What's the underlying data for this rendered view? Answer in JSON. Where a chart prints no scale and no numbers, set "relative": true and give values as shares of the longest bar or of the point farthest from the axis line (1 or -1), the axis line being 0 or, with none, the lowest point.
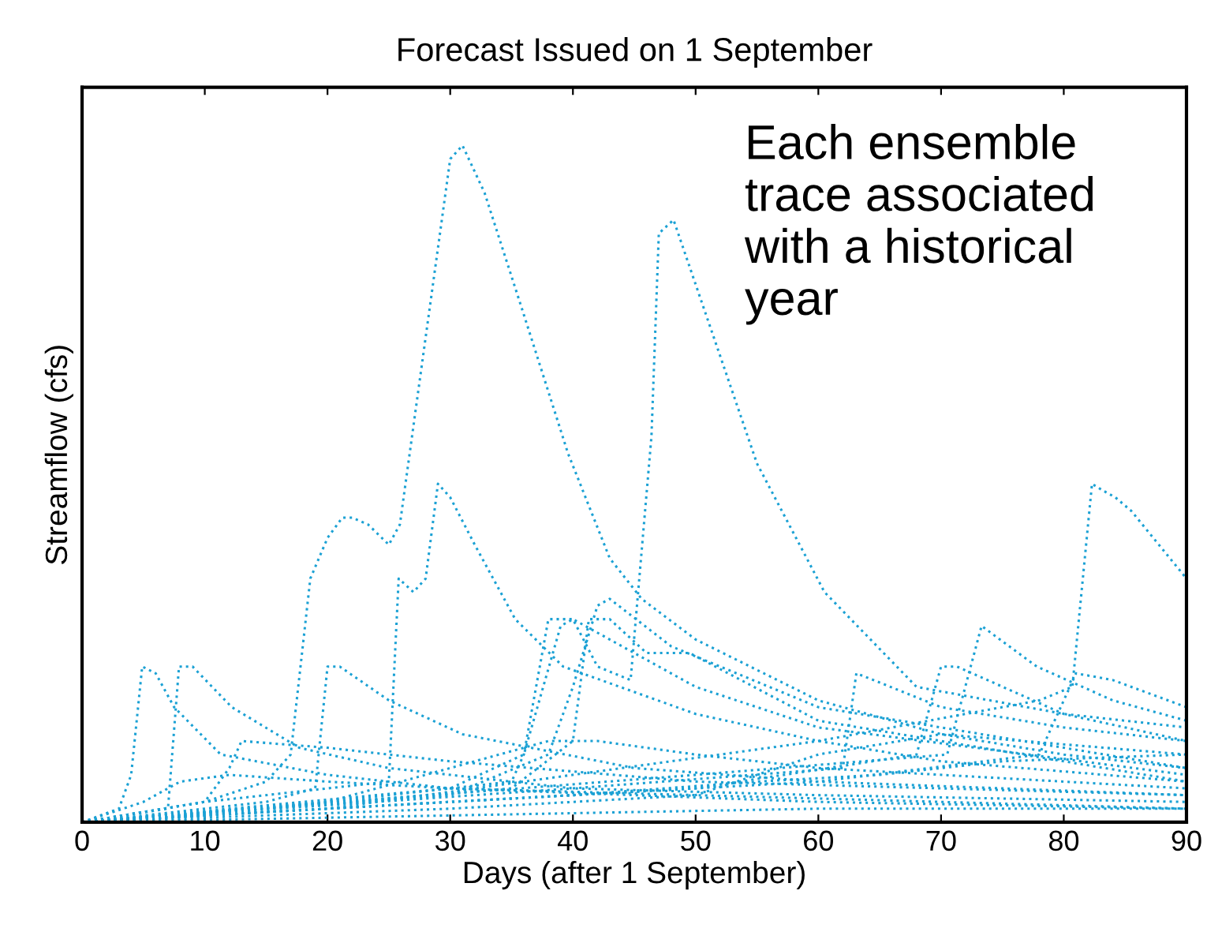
{
  "chart_data": {
    "type": "line",
    "title": "Forecast Issued on 1 September",
    "xlabel": "Days (after 1 September)",
    "ylabel": "Streamflow (cfs)",
    "relative": true,
    "xlim": [
      0,
      90
    ],
    "xticks": [
      0,
      10,
      20,
      30,
      40,
      50,
      60,
      70,
      80,
      90
    ],
    "grid": false,
    "marker": "none",
    "line_style": "dotted",
    "annotations": [
      "Each ensemble trace associated with a historical year"
    ],
    "series": [
      {
        "color": "#1ba1d4",
        "x": [
          0,
          10,
          15,
          17,
          18.6,
          20,
          21.2,
          22,
          23.3,
          25,
          25.9,
          30,
          31,
          32.8,
          36,
          39.6,
          43,
          45.6,
          50,
          60,
          70,
          80,
          90
        ],
        "values": [
          0,
          0.03,
          0.06,
          0.1,
          0.36,
          0.42,
          0.45,
          0.45,
          0.44,
          0.41,
          0.44,
          0.98,
          1,
          0.93,
          0.75,
          0.545,
          0.39,
          0.33,
          0.27,
          0.18,
          0.13,
          0.1,
          0.08
        ]
      },
      {
        "color": "#1ba1d4",
        "x": [
          0,
          10,
          20,
          25,
          25.8,
          27,
          28,
          29,
          30,
          32,
          35.3,
          39.2,
          50,
          60,
          70,
          90
        ],
        "values": [
          0,
          0.03,
          0.05,
          0.06,
          0.36,
          0.34,
          0.36,
          0.5,
          0.48,
          0.41,
          0.3,
          0.23,
          0.16,
          0.12,
          0.09,
          0.06
        ]
      },
      {
        "color": "#1ba1d4",
        "x": [
          0,
          20,
          35,
          36,
          38,
          40,
          42,
          44.7,
          46.4,
          47,
          48.2,
          55,
          60.5,
          68,
          80,
          90
        ],
        "values": [
          0,
          0.03,
          0.06,
          0.1,
          0.3,
          0.3,
          0.23,
          0.21,
          0.57,
          0.87,
          0.89,
          0.53,
          0.34,
          0.2,
          0.16,
          0.14
        ]
      },
      {
        "color": "#1ba1d4",
        "x": [
          0,
          20,
          60,
          78,
          80.7,
          82.3,
          83.2,
          84.2,
          85.5,
          90
        ],
        "values": [
          0,
          0.02,
          0.12,
          0.18,
          0.2,
          0.5,
          0.49,
          0.48,
          0.46,
          0.36
        ]
      },
      {
        "color": "#1ba1d4",
        "x": [
          0,
          3,
          4,
          4.9,
          6,
          7.5,
          11.3,
          20,
          30,
          60,
          90
        ],
        "values": [
          0,
          0.02,
          0.07,
          0.23,
          0.22,
          0.17,
          0.1,
          0.07,
          0.05,
          0.03,
          0.02
        ]
      },
      {
        "color": "#1ba1d4",
        "x": [
          0,
          7,
          7.9,
          9,
          12.2,
          17.7,
          25,
          40,
          60,
          90
        ],
        "values": [
          0,
          0.02,
          0.23,
          0.23,
          0.17,
          0.11,
          0.08,
          0.05,
          0.04,
          0.03
        ]
      },
      {
        "color": "#1ba1d4",
        "x": [
          0,
          15,
          19,
          20,
          21,
          25,
          31,
          45,
          60,
          90
        ],
        "values": [
          0,
          0.03,
          0.05,
          0.23,
          0.23,
          0.18,
          0.13,
          0.08,
          0.06,
          0.04
        ]
      },
      {
        "color": "#1ba1d4",
        "x": [
          0,
          30,
          36,
          39,
          40,
          45,
          50,
          60,
          90
        ],
        "values": [
          0,
          0.05,
          0.1,
          0.29,
          0.3,
          0.25,
          0.2,
          0.14,
          0.07
        ]
      },
      {
        "color": "#1ba1d4",
        "x": [
          0,
          30,
          38,
          40,
          42,
          43,
          48,
          60,
          90
        ],
        "values": [
          0,
          0.04,
          0.1,
          0.2,
          0.32,
          0.33,
          0.26,
          0.17,
          0.08
        ]
      },
      {
        "color": "#1ba1d4",
        "x": [
          0,
          35,
          40,
          41.3,
          43,
          46,
          49.5,
          60,
          90
        ],
        "values": [
          0,
          0.05,
          0.12,
          0.3,
          0.3,
          0.25,
          0.25,
          0.15,
          0.06
        ]
      },
      {
        "color": "#1ba1d4",
        "x": [
          0,
          40,
          62,
          63.1,
          64.5,
          70,
          80,
          90
        ],
        "values": [
          0,
          0.05,
          0.08,
          0.22,
          0.21,
          0.17,
          0.14,
          0.12
        ]
      },
      {
        "color": "#1ba1d4",
        "x": [
          0,
          50,
          70.5,
          73.3,
          77.8,
          84,
          90
        ],
        "values": [
          0,
          0.07,
          0.1,
          0.29,
          0.23,
          0.18,
          0.15
        ]
      },
      {
        "color": "#1ba1d4",
        "x": [
          0,
          50,
          68,
          70,
          71.3,
          80,
          90
        ],
        "values": [
          0,
          0.05,
          0.1,
          0.23,
          0.23,
          0.16,
          0.12
        ]
      },
      {
        "color": "#1ba1d4",
        "x": [
          0,
          60,
          78,
          81,
          84,
          90
        ],
        "values": [
          0,
          0.06,
          0.1,
          0.22,
          0.21,
          0.17
        ]
      },
      {
        "color": "#1ba1d4",
        "x": [
          0,
          20,
          30,
          38,
          42,
          50,
          60,
          90
        ],
        "values": [
          0,
          0.03,
          0.08,
          0.12,
          0.12,
          0.1,
          0.08,
          0.05
        ]
      },
      {
        "color": "#1ba1d4",
        "x": [
          0,
          10,
          12,
          13,
          20,
          30,
          50,
          90
        ],
        "values": [
          0,
          0.03,
          0.08,
          0.12,
          0.11,
          0.09,
          0.06,
          0.04
        ]
      },
      {
        "color": "#1ba1d4",
        "x": [
          0,
          5,
          8,
          12,
          20,
          30,
          50,
          70,
          90
        ],
        "values": [
          0,
          0.03,
          0.06,
          0.07,
          0.06,
          0.05,
          0.04,
          0.03,
          0.02
        ]
      },
      {
        "color": "#1ba1d4",
        "x": [
          0,
          20,
          40,
          55,
          65,
          75,
          90
        ],
        "values": [
          0,
          0.02,
          0.04,
          0.06,
          0.07,
          0.09,
          0.1
        ]
      },
      {
        "color": "#1ba1d4",
        "x": [
          0,
          30,
          50,
          60,
          70,
          90
        ],
        "values": [
          0,
          0.02,
          0.04,
          0.1,
          0.13,
          0.1
        ]
      },
      {
        "color": "#1ba1d4",
        "x": [
          0,
          30,
          60,
          90
        ],
        "values": [
          0,
          0.01,
          0.02,
          0.02
        ]
      }
    ]
  }
}
